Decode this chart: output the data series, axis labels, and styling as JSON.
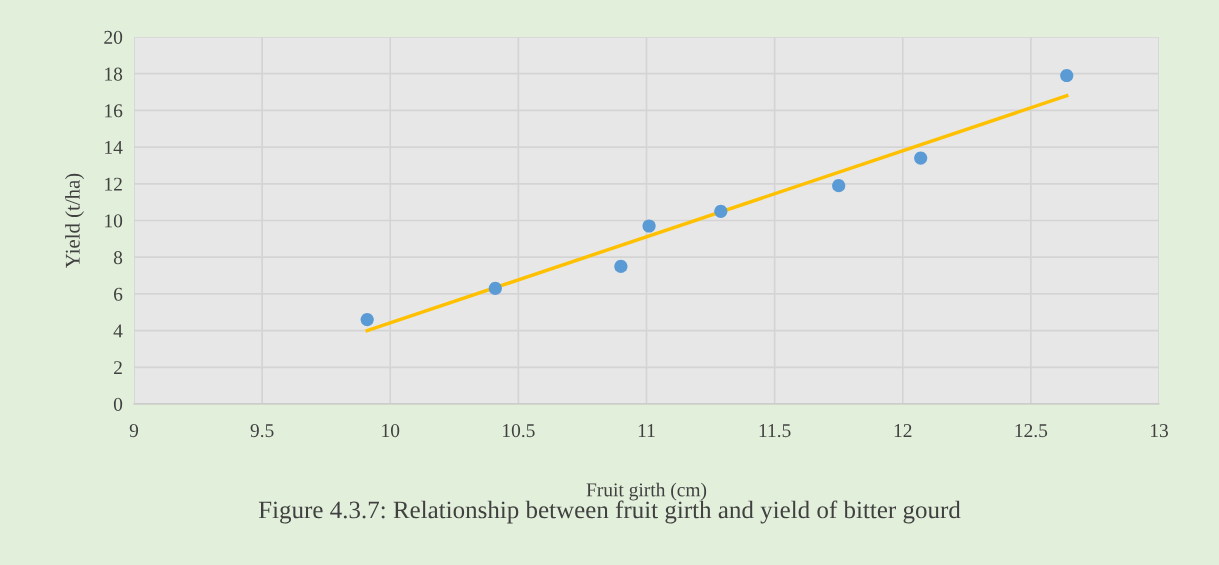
{
  "chart_data": {
    "type": "scatter",
    "title": "Figure 4.3.7: Relationship between fruit girth and yield of bitter gourd",
    "xlabel": "Fruit girth (cm)",
    "ylabel": "Yield (t/ha)",
    "series": [
      {
        "color": "#5b9bd5",
        "x": [
          9.91,
          10.41,
          10.9,
          11.01,
          11.29,
          11.75,
          12.07,
          12.64
        ],
        "values": [
          4.6,
          6.3,
          7.5,
          9.7,
          10.5,
          11.9,
          13.4,
          17.9
        ],
        "marker": "circle"
      },
      {
        "type": "line",
        "color": "#ffc000",
        "x": [
          9.91,
          12.64
        ],
        "values": [
          4.0,
          16.8
        ],
        "marker": "none"
      }
    ],
    "xlim": [
      9,
      13
    ],
    "xticks": [
      9,
      9.5,
      10,
      10.5,
      11,
      11.5,
      12,
      12.5,
      13
    ],
    "ylim": [
      0,
      20
    ],
    "yticks": [
      0,
      2,
      4,
      6,
      8,
      10,
      12,
      14,
      16,
      18,
      20
    ],
    "grid": true,
    "legend": false
  }
}
